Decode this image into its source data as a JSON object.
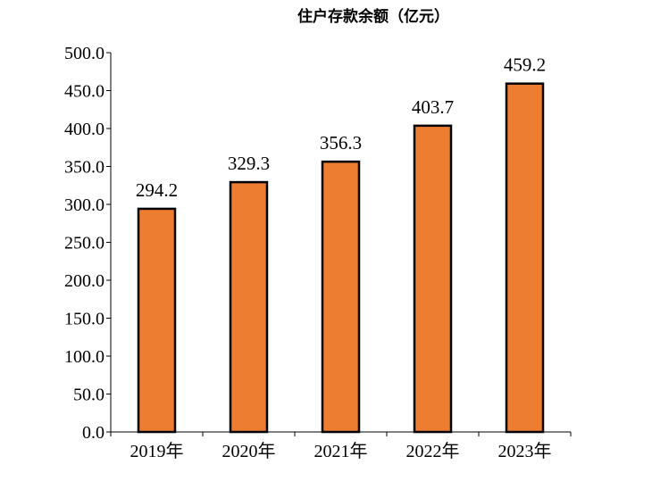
{
  "chart_data": {
    "type": "bar",
    "title": "住户存款余额（亿元）",
    "categories": [
      "2019年",
      "2020年",
      "2021年",
      "2022年",
      "2023年"
    ],
    "values": [
      294.2,
      329.3,
      356.3,
      403.7,
      459.2
    ],
    "value_labels": [
      "294.2",
      "329.3",
      "356.3",
      "403.7",
      "459.2"
    ],
    "ylim": [
      0,
      500
    ],
    "yticks": [
      "0.0",
      "50.0",
      "100.0",
      "150.0",
      "200.0",
      "250.0",
      "300.0",
      "350.0",
      "400.0",
      "450.0",
      "500.0"
    ],
    "xlabel": "",
    "ylabel": "",
    "grid": false,
    "legend": "none",
    "bar_color": "#ED7D31",
    "bar_edge_color": "#000000"
  }
}
